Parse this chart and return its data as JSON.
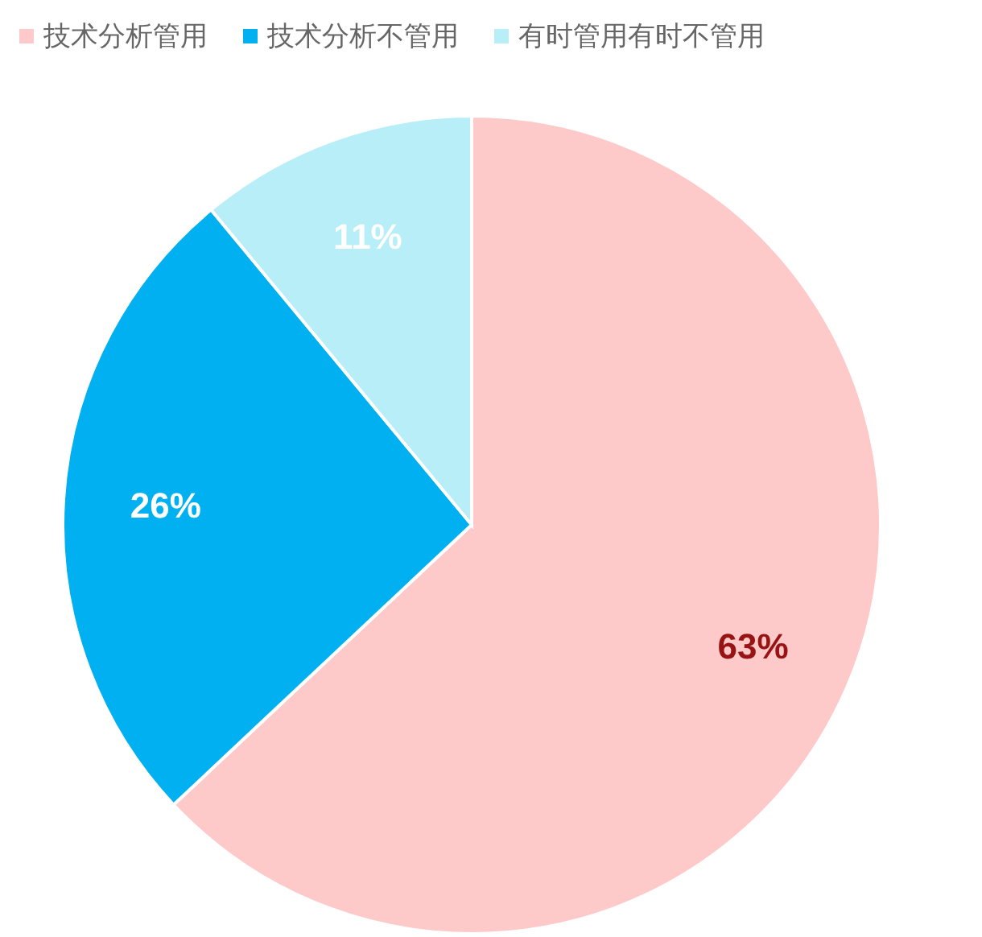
{
  "chart_data": {
    "type": "pie",
    "categories": [
      "技术分析管用",
      "技术分析不管用",
      "有时管用有时不管用"
    ],
    "values": [
      63,
      26,
      11
    ],
    "colors": [
      "#fdc9c9",
      "#00b0f0",
      "#b8eef8"
    ],
    "value_labels": [
      "63%",
      "26%",
      "11%"
    ],
    "legend": "top left"
  }
}
